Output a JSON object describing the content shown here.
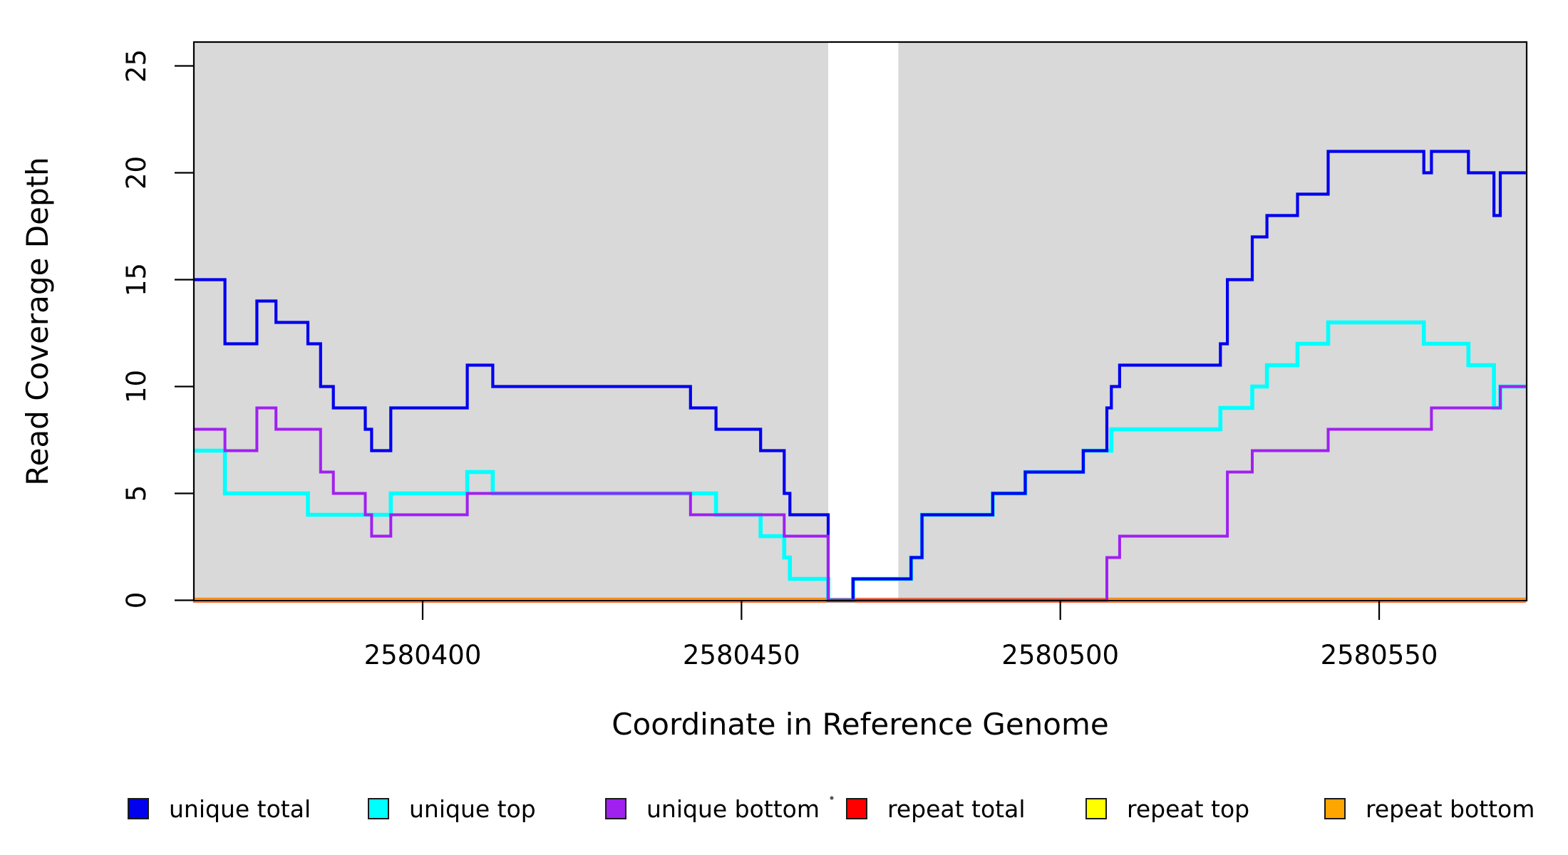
{
  "figure": {
    "background_color": "#ffffff",
    "plot_background_color": "#d9d9d9",
    "border_color": "#000000"
  },
  "y_axis": {
    "label": "Read Coverage Depth",
    "ticks": [
      0,
      5,
      10,
      15,
      20,
      25
    ]
  },
  "x_axis": {
    "label": "Coordinate in Reference Genome",
    "ticks": [
      2580400,
      2580450,
      2580500,
      2580550
    ]
  },
  "legend": {
    "items": [
      {
        "label": "unique total",
        "color": "#0000ee"
      },
      {
        "label": "unique top",
        "color": "#00ffff"
      },
      {
        "label": "unique bottom",
        "color": "#a020f0"
      },
      {
        "label": "repeat total",
        "color": "#ff0000"
      },
      {
        "label": "repeat top",
        "color": "#ffff00"
      },
      {
        "label": "repeat bottom",
        "color": "#ffa500"
      }
    ]
  },
  "chart_data": {
    "type": "line",
    "subtype": "step-after",
    "title": "",
    "xlabel": "Coordinate in Reference Genome",
    "ylabel": "Read Coverage Depth",
    "xlim": [
      2580364,
      2580573
    ],
    "ylim": [
      0,
      26
    ],
    "grid": false,
    "legend_position": "bottom",
    "x_ticks": [
      2580400,
      2580450,
      2580500,
      2580550
    ],
    "y_ticks": [
      0,
      5,
      10,
      15,
      20,
      25
    ],
    "uncovered_gap_region": {
      "x_start": 2580463.6,
      "x_end": 2580474.6
    },
    "series": [
      {
        "name": "unique total",
        "color": "#0000ee",
        "points": [
          [
            2580364,
            15
          ],
          [
            2580369,
            12
          ],
          [
            2580374,
            14
          ],
          [
            2580377,
            13
          ],
          [
            2580382,
            12
          ],
          [
            2580384,
            10
          ],
          [
            2580386,
            9
          ],
          [
            2580391,
            8
          ],
          [
            2580392,
            7
          ],
          [
            2580395,
            9
          ],
          [
            2580407,
            11
          ],
          [
            2580411,
            10
          ],
          [
            2580442,
            9
          ],
          [
            2580446,
            8
          ],
          [
            2580453,
            7
          ],
          [
            2580456.7,
            5
          ],
          [
            2580457.6,
            4
          ],
          [
            2580463.6,
            0
          ],
          [
            2580467.5,
            1
          ],
          [
            2580476.6,
            2
          ],
          [
            2580478.3,
            4
          ],
          [
            2580489.4,
            5
          ],
          [
            2580494.5,
            6
          ],
          [
            2580503.6,
            7
          ],
          [
            2580507.3,
            9
          ],
          [
            2580508,
            10
          ],
          [
            2580509.3,
            11
          ],
          [
            2580525.1,
            12
          ],
          [
            2580526.2,
            15
          ],
          [
            2580530.1,
            17
          ],
          [
            2580532.4,
            18
          ],
          [
            2580537.2,
            19
          ],
          [
            2580542,
            21
          ],
          [
            2580557,
            20
          ],
          [
            2580558.2,
            21
          ],
          [
            2580564,
            20
          ],
          [
            2580568,
            18
          ],
          [
            2580569,
            20
          ],
          [
            2580573,
            20
          ]
        ]
      },
      {
        "name": "unique top",
        "color": "#00ffff",
        "points": [
          [
            2580364,
            7
          ],
          [
            2580369,
            5
          ],
          [
            2580382,
            4
          ],
          [
            2580395,
            5
          ],
          [
            2580407,
            6
          ],
          [
            2580411,
            5
          ],
          [
            2580446,
            4
          ],
          [
            2580453,
            3
          ],
          [
            2580456.7,
            2
          ],
          [
            2580457.6,
            1
          ],
          [
            2580463.6,
            0
          ],
          [
            2580467.5,
            1
          ],
          [
            2580476.6,
            2
          ],
          [
            2580478.3,
            4
          ],
          [
            2580489.4,
            5
          ],
          [
            2580494.5,
            6
          ],
          [
            2580503.6,
            7
          ],
          [
            2580508,
            8
          ],
          [
            2580525.1,
            9
          ],
          [
            2580530.1,
            10
          ],
          [
            2580532.4,
            11
          ],
          [
            2580537.2,
            12
          ],
          [
            2580542,
            13
          ],
          [
            2580557,
            12
          ],
          [
            2580564,
            11
          ],
          [
            2580568,
            9
          ],
          [
            2580569,
            10
          ],
          [
            2580573,
            10
          ]
        ]
      },
      {
        "name": "unique bottom",
        "color": "#a020f0",
        "points": [
          [
            2580364,
            8
          ],
          [
            2580369,
            7
          ],
          [
            2580374,
            9
          ],
          [
            2580377,
            8
          ],
          [
            2580384,
            6
          ],
          [
            2580386,
            5
          ],
          [
            2580391,
            4
          ],
          [
            2580392,
            3
          ],
          [
            2580395,
            4
          ],
          [
            2580407,
            5
          ],
          [
            2580442,
            4
          ],
          [
            2580456.7,
            3
          ],
          [
            2580463.6,
            0
          ],
          [
            2580507.3,
            2
          ],
          [
            2580509.3,
            3
          ],
          [
            2580526.2,
            6
          ],
          [
            2580530.1,
            7
          ],
          [
            2580542,
            8
          ],
          [
            2580558.2,
            9
          ],
          [
            2580569,
            10
          ],
          [
            2580573,
            10
          ]
        ]
      },
      {
        "name": "repeat total",
        "color": "#ff0000",
        "points": [
          [
            2580364,
            0
          ],
          [
            2580573,
            0
          ]
        ]
      },
      {
        "name": "repeat top",
        "color": "#ffff00",
        "points": [
          [
            2580364,
            0
          ],
          [
            2580573,
            0
          ]
        ]
      },
      {
        "name": "repeat bottom",
        "color": "#ffa500",
        "points": [
          [
            2580364,
            0
          ],
          [
            2580573,
            0
          ]
        ]
      }
    ]
  },
  "annotations": {
    "stray_dot_color": "#555555"
  }
}
